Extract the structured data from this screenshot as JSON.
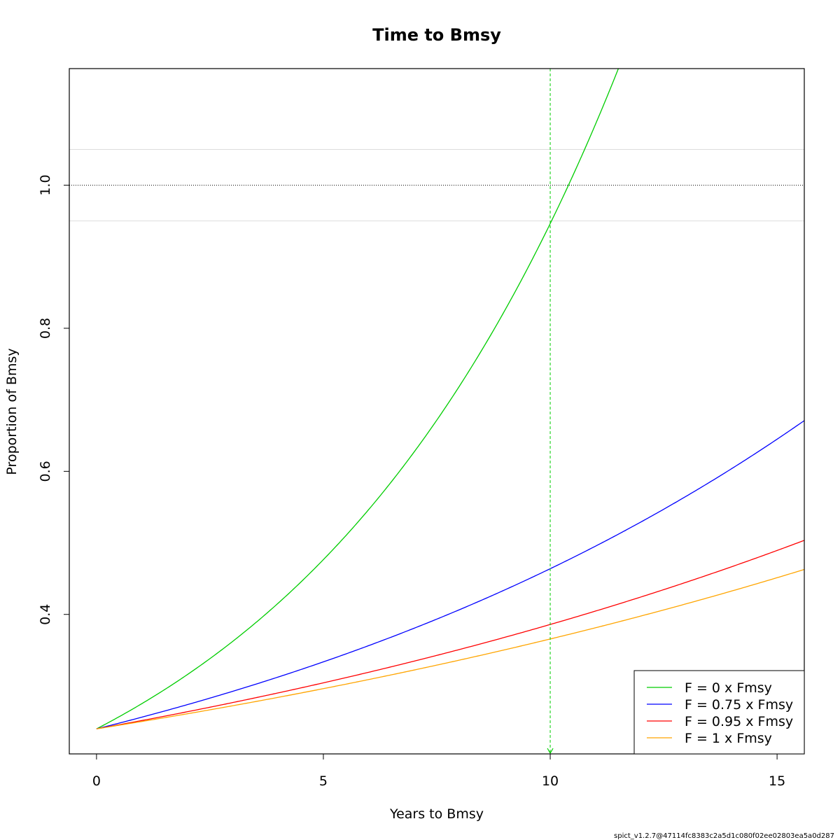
{
  "chart_data": {
    "type": "line",
    "title": "Time to Bmsy",
    "xlabel": "Years to Bmsy",
    "ylabel": "Proportion of Bmsy",
    "xlim": [
      -0.6,
      15.6
    ],
    "ylim": [
      0.205,
      1.163
    ],
    "xticks": [
      0,
      5,
      10,
      15
    ],
    "yticks": [
      0.4,
      0.6,
      0.8,
      1.0
    ],
    "ytick_labels": [
      "0.4",
      "0.6",
      "0.8",
      "1.0"
    ],
    "grid": false,
    "reference_lines": {
      "target": 1.0,
      "target_style": "dotted",
      "band": [
        0.95,
        1.05
      ],
      "band_color": "#dddddd"
    },
    "marker": {
      "x": 10,
      "color": "#00cd00",
      "style": "dashed",
      "symbol": "arrow-down"
    },
    "series": [
      {
        "name": "F = 0 x Fmsy",
        "color": "#00cd00",
        "y0": 0.24,
        "rate": 0.1372
      },
      {
        "name": "F = 0.75 x Fmsy",
        "color": "#0000ff",
        "y0": 0.24,
        "rate": 0.0659
      },
      {
        "name": "F = 0.95 x Fmsy",
        "color": "#ff0000",
        "y0": 0.24,
        "rate": 0.0475
      },
      {
        "name": "F = 1 x Fmsy",
        "color": "#ffa500",
        "y0": 0.24,
        "rate": 0.0421
      }
    ],
    "legend": {
      "position": "bottom-right"
    }
  },
  "footer": {
    "text": "spict_v1.2.7@47114fc8383c2a5d1c080f02ee02803ea5a0d287"
  }
}
